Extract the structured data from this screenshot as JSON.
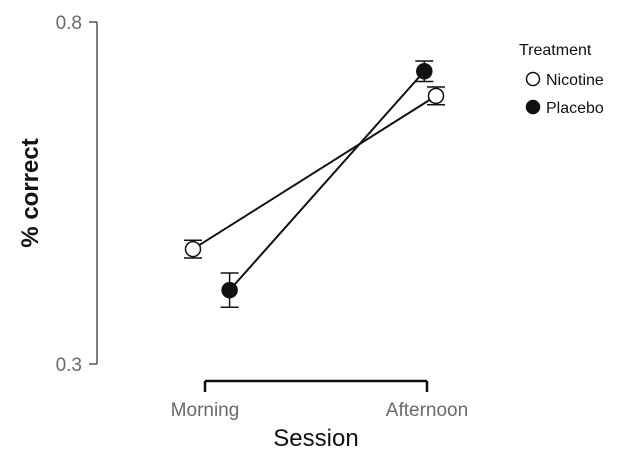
{
  "chart_data": {
    "type": "line",
    "title": "",
    "xlabel": "Session",
    "ylabel": "% correct",
    "categories": [
      "Morning",
      "Afternoon"
    ],
    "ylim": [
      0.3,
      0.8
    ],
    "yticks": [
      "0.8",
      "0.3"
    ],
    "grid": false,
    "legend": {
      "title": "Treatment",
      "position": "top-right"
    },
    "series": [
      {
        "name": "Nicotine",
        "marker": "open-circle",
        "color": "#111111",
        "fill": "#ffffff",
        "values": [
          0.468,
          0.692
        ],
        "error": [
          0.013,
          0.013
        ]
      },
      {
        "name": "Placebo",
        "marker": "filled-circle",
        "color": "#111111",
        "fill": "#111111",
        "values": [
          0.408,
          0.728
        ],
        "error": [
          0.025,
          0.015
        ]
      }
    ]
  }
}
